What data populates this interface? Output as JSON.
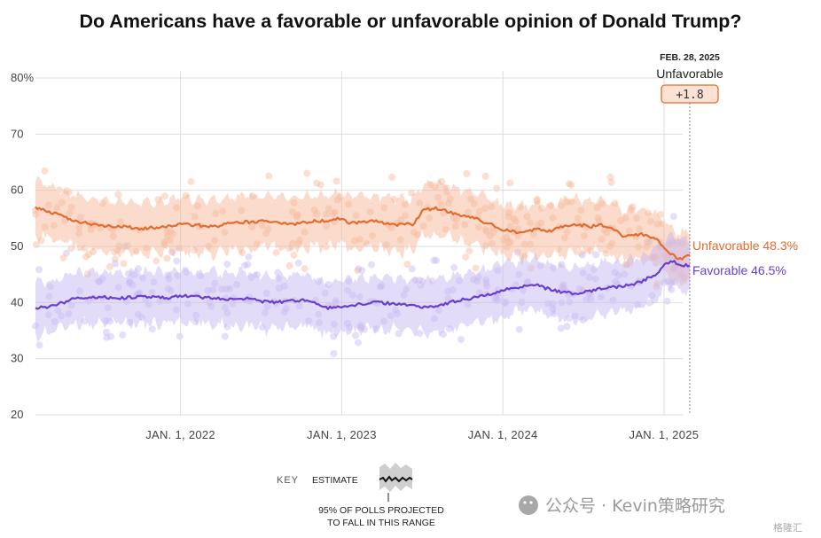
{
  "title": "Do Americans have a favorable or unfavorable opinion of Donald Trump?",
  "chart_data": {
    "type": "line",
    "title": "Do Americans have a favorable or unfavorable opinion of Donald Trump?",
    "ylim": [
      20,
      80
    ],
    "yticks": [
      {
        "value": 80,
        "label": "80%"
      },
      {
        "value": 70,
        "label": "70"
      },
      {
        "value": 60,
        "label": "60"
      },
      {
        "value": 50,
        "label": "50"
      },
      {
        "value": 40,
        "label": "40"
      },
      {
        "value": 30,
        "label": "30"
      },
      {
        "value": 20,
        "label": "20"
      }
    ],
    "x_range": [
      2021.1,
      2025.16
    ],
    "xticks": [
      {
        "value": 2022,
        "label": "JAN. 1, 2022"
      },
      {
        "value": 2023,
        "label": "JAN. 1, 2023"
      },
      {
        "value": 2024,
        "label": "JAN. 1, 2024"
      },
      {
        "value": 2025,
        "label": "JAN. 1, 2025"
      }
    ],
    "series": [
      {
        "name": "Unfavorable",
        "end_label": "Unfavorable 48.3%",
        "color": "#e36b2d",
        "band_color": "#f6b89a",
        "x": [
          2021.1,
          2021.2,
          2021.35,
          2021.5,
          2021.6,
          2021.75,
          2021.9,
          2022.0,
          2022.1,
          2022.2,
          2022.3,
          2022.4,
          2022.55,
          2022.7,
          2022.8,
          2022.9,
          2023.0,
          2023.05,
          2023.2,
          2023.35,
          2023.45,
          2023.5,
          2023.6,
          2023.7,
          2023.8,
          2023.9,
          2024.0,
          2024.1,
          2024.2,
          2024.3,
          2024.4,
          2024.45,
          2024.55,
          2024.6,
          2024.7,
          2024.75,
          2024.85,
          2024.95,
          2025.0,
          2025.05,
          2025.1,
          2025.16
        ],
        "values": [
          57.0,
          56.0,
          54.5,
          53.8,
          53.6,
          53.2,
          53.4,
          54.0,
          53.8,
          53.5,
          54.0,
          54.3,
          54.5,
          54.0,
          54.4,
          54.6,
          55.0,
          54.2,
          54.5,
          53.8,
          54.0,
          56.5,
          56.8,
          55.8,
          55.2,
          54.2,
          53.0,
          52.5,
          53.0,
          52.8,
          53.8,
          54.0,
          53.5,
          54.0,
          52.8,
          51.8,
          52.2,
          51.3,
          50.0,
          48.5,
          47.8,
          48.3
        ]
      },
      {
        "name": "Favorable",
        "end_label": "Favorable 46.5%",
        "color": "#6a3fd0",
        "band_color": "#c7b9f2",
        "x": [
          2021.1,
          2021.2,
          2021.35,
          2021.5,
          2021.6,
          2021.75,
          2021.9,
          2022.0,
          2022.1,
          2022.2,
          2022.3,
          2022.4,
          2022.55,
          2022.7,
          2022.8,
          2022.9,
          2023.0,
          2023.05,
          2023.2,
          2023.35,
          2023.45,
          2023.5,
          2023.6,
          2023.7,
          2023.8,
          2023.9,
          2024.0,
          2024.1,
          2024.2,
          2024.3,
          2024.4,
          2024.45,
          2024.55,
          2024.6,
          2024.7,
          2024.75,
          2024.85,
          2024.95,
          2025.0,
          2025.05,
          2025.1,
          2025.16
        ],
        "values": [
          39.0,
          39.3,
          40.8,
          41.0,
          40.8,
          41.0,
          40.8,
          41.2,
          41.0,
          40.8,
          40.5,
          40.8,
          40.0,
          40.3,
          40.5,
          39.0,
          39.2,
          39.5,
          40.0,
          39.8,
          39.4,
          39.2,
          39.5,
          40.2,
          40.8,
          41.3,
          42.2,
          42.8,
          43.3,
          42.2,
          41.8,
          41.5,
          42.0,
          42.5,
          42.8,
          42.9,
          43.6,
          45.0,
          46.8,
          47.5,
          46.8,
          46.5
        ]
      }
    ],
    "annotation": {
      "date": "FEB. 28, 2025",
      "leader": "Unfavorable",
      "margin": "+1.8"
    }
  },
  "key": {
    "label": "KEY",
    "estimate": "ESTIMATE",
    "range_line1": "95% OF POLLS PROJECTED",
    "range_line2": "TO FALL IN THIS RANGE"
  },
  "watermark": {
    "text": "公众号 · Kevin策略研究",
    "corner": "格隆汇"
  }
}
